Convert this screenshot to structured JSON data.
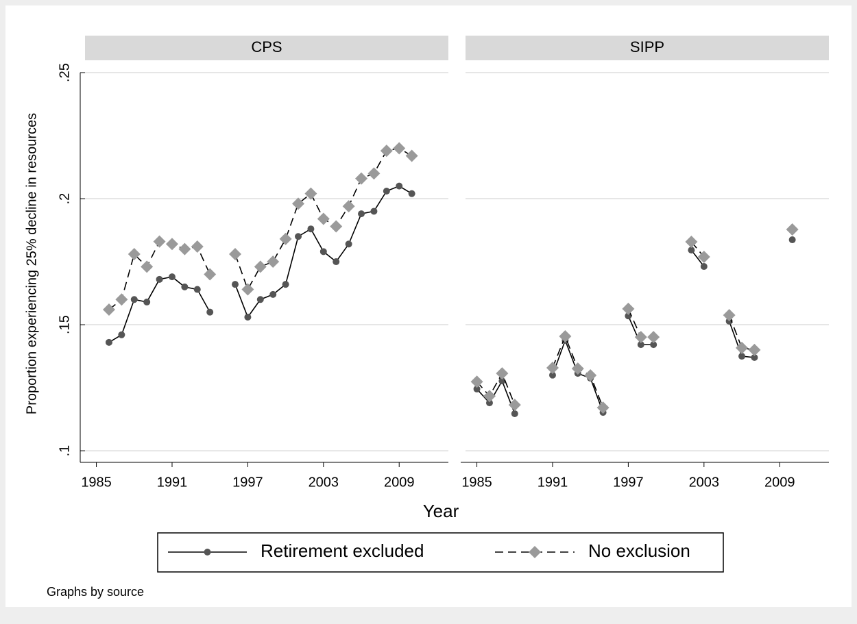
{
  "chart_data": [
    {
      "type": "line",
      "title": "CPS",
      "x": [
        1986,
        1987,
        1988,
        1989,
        1990,
        1991,
        1992,
        1993,
        1994,
        1995,
        1996,
        1997,
        1998,
        1999,
        2000,
        2001,
        2002,
        2003,
        2004,
        2005,
        2006,
        2007,
        2008,
        2009,
        2010
      ],
      "series": [
        {
          "name": "Retirement excluded",
          "color": "#555555",
          "values": [
            0.143,
            0.146,
            0.16,
            0.159,
            0.168,
            0.169,
            0.165,
            0.164,
            0.155,
            null,
            0.166,
            0.153,
            0.16,
            0.162,
            0.166,
            0.185,
            0.188,
            0.179,
            0.175,
            0.182,
            0.194,
            0.195,
            0.203,
            0.205,
            0.202
          ]
        },
        {
          "name": "No exclusion",
          "color": "#9a9a9a",
          "values": [
            0.156,
            0.16,
            0.178,
            0.173,
            0.183,
            0.182,
            0.18,
            0.181,
            0.17,
            null,
            0.178,
            0.164,
            0.173,
            0.175,
            0.184,
            0.198,
            0.202,
            0.192,
            0.189,
            0.197,
            0.208,
            0.21,
            0.219,
            0.22,
            0.217
          ]
        }
      ],
      "xlim": [
        1984.1,
        2012.9
      ],
      "ylim": [
        0.0954,
        0.2549
      ],
      "xticks": [
        1985,
        1991,
        1997,
        2003,
        2009
      ],
      "yticks": [
        {
          "value": 0.1,
          "label": ".1"
        },
        {
          "value": 0.15,
          "label": ".15"
        },
        {
          "value": 0.2,
          "label": ".2"
        },
        {
          "value": 0.25,
          "label": ".25"
        }
      ],
      "grid": true
    },
    {
      "type": "line",
      "title": "SIPP",
      "x": [
        1985,
        1986,
        1987,
        1988,
        1989,
        1990,
        1991,
        1992,
        1993,
        1994,
        1995,
        1996,
        1997,
        1998,
        1999,
        2000,
        2001,
        2002,
        2003,
        2004,
        2005,
        2006,
        2007,
        2008,
        2009,
        2010
      ],
      "series": [
        {
          "color": "#555555",
          "values": [
            0.1245,
            0.119,
            0.1277,
            0.1147,
            null,
            null,
            0.13,
            0.1438,
            0.1307,
            0.1288,
            0.1152,
            null,
            0.1535,
            0.1421,
            0.1421,
            null,
            null,
            0.1796,
            0.1731,
            null,
            0.1514,
            0.1375,
            0.137,
            null,
            null,
            0.1837
          ]
        },
        {
          "color": "#9a9a9a",
          "values": [
            0.1274,
            0.1217,
            0.1307,
            0.1182,
            null,
            null,
            0.1329,
            0.1454,
            0.1326,
            0.1299,
            0.1171,
            null,
            0.1563,
            0.1451,
            0.1451,
            null,
            null,
            0.1829,
            0.1769,
            null,
            0.1538,
            0.1408,
            0.14,
            null,
            null,
            0.1878
          ]
        }
      ],
      "xlim": [
        1984.1,
        2012.9
      ],
      "ylim": [
        0.0954,
        0.2549
      ],
      "xticks": [
        1985,
        1991,
        1997,
        2003,
        2009
      ],
      "grid": true
    }
  ],
  "y_label": "Proportion experiencing 25% decline in resources",
  "x_label": "Year",
  "note": "Graphs by source"
}
